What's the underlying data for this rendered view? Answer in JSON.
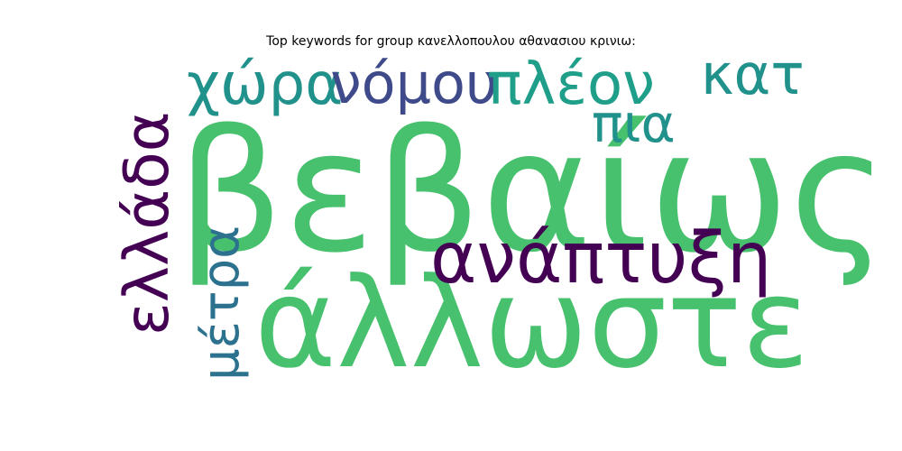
{
  "title": "Top keywords for group κανελλοπουλου αθανασιου κρινιω:",
  "words": [
    {
      "text": "βεβαίως",
      "color": "#48c16e"
    },
    {
      "text": "άλλωστε",
      "color": "#48c16e"
    },
    {
      "text": "ανάπτυξη",
      "color": "#440154"
    },
    {
      "text": "χώρα",
      "color": "#21918c"
    },
    {
      "text": "νόμου",
      "color": "#3e4a89"
    },
    {
      "text": "πλέον",
      "color": "#1f9e89"
    },
    {
      "text": "κατ",
      "color": "#21918c"
    },
    {
      "text": "πια",
      "color": "#21918c"
    },
    {
      "text": "ελλάδα",
      "color": "#440154"
    },
    {
      "text": "μέτρα",
      "color": "#2c728e"
    }
  ]
}
